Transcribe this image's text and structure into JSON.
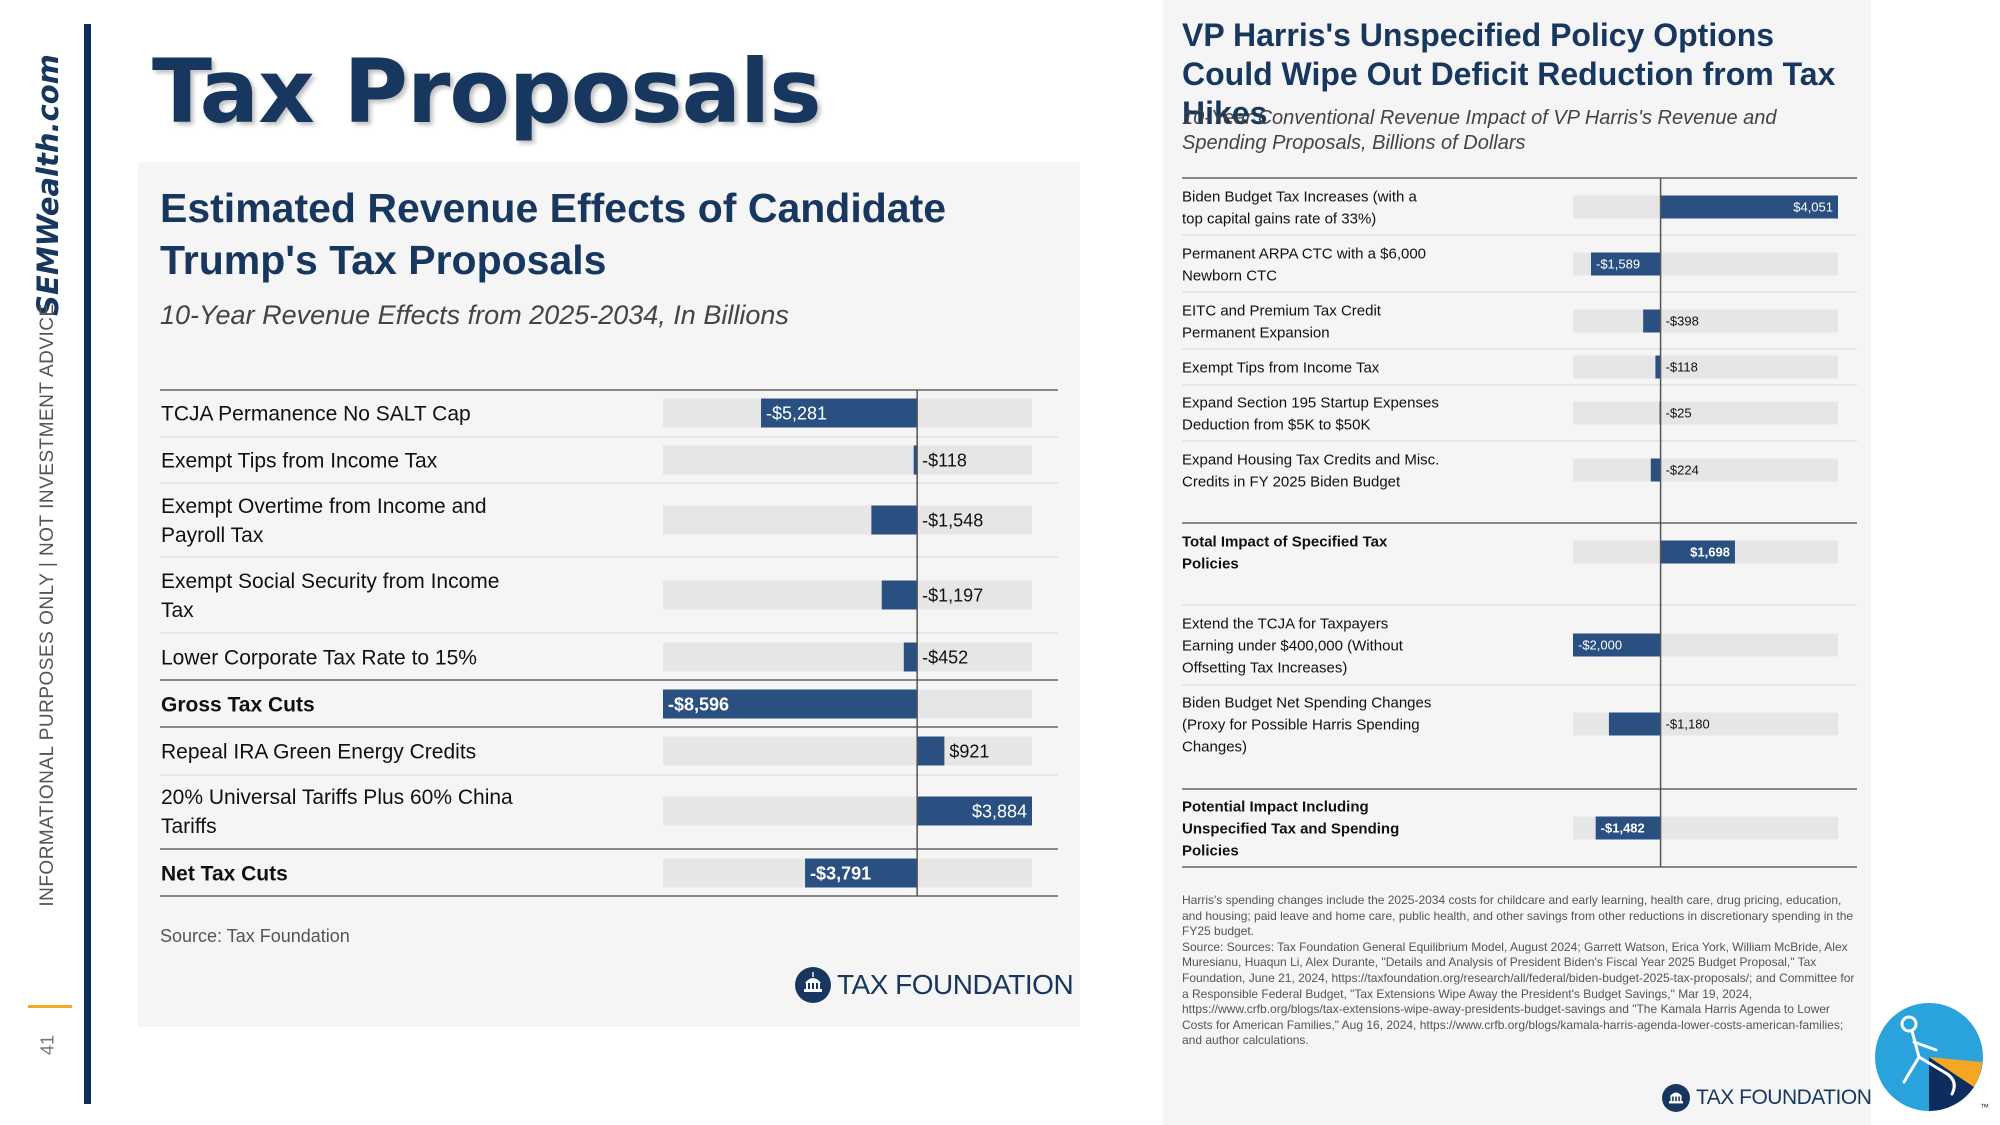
{
  "slide": {
    "title": "Tax Proposals",
    "brand": "SEMWealth.com",
    "disclaimer": "INFORMATIONAL PURPOSES ONLY | NOT INVESTMENT ADVICE",
    "page_number": "41",
    "colors": {
      "navy": "#17375e",
      "bar": "#2a5082",
      "track": "#e6e6e6",
      "accent": "#f5a623"
    }
  },
  "left_panel": {
    "title": "Estimated Revenue Effects of Candidate Trump's Tax Proposals",
    "subtitle": "10-Year Revenue Effects from 2025-2034, In Billions",
    "source": "Source: Tax Foundation",
    "logo_text": "TAX FOUNDATION",
    "logo_icon": "capitol-icon"
  },
  "right_panel": {
    "title": "VP Harris's Unspecified Policy Options Could Wipe Out Deficit Reduction from Tax Hikes",
    "subtitle": "10-Year Conventional Revenue Impact of VP Harris's Revenue and Spending Proposals, Billions of Dollars",
    "notes": "Harris's spending changes include the 2025-2034 costs for childcare and early learning, health care, drug pricing, education, and housing; paid leave and home care, public health, and other savings from other reductions in discretionary spending in the FY25 budget.\nSource: Sources: Tax Foundation General Equilibrium Model, August 2024; Garrett Watson, Erica York, William McBride, Alex Muresianu, Huaqun Li, Alex Durante, \"Details and Analysis of President Biden's Fiscal Year 2025 Budget Proposal,\" Tax Foundation, June 21, 2024, https://taxfoundation.org/research/all/federal/biden-budget-2025-tax-proposals/; and Committee for a Responsible Federal Budget, \"Tax Extensions Wipe Away the President's Budget Savings,\" Mar 19, 2024, https://www.crfb.org/blogs/tax-extensions-wipe-away-presidents-budget-savings and \"The Kamala Harris Agenda to Lower Costs for American Families,\" Aug 16, 2024, https://www.crfb.org/blogs/kamala-harris-agenda-lower-costs-american-families; and author calculations.",
    "logo_text": "TAX FOUNDATION",
    "logo_icon": "capitol-icon"
  },
  "chart_data": [
    {
      "type": "bar",
      "orientation": "horizontal",
      "title": "Estimated Revenue Effects of Candidate Trump's Tax Proposals",
      "subtitle": "10-Year Revenue Effects from 2025-2034, In Billions",
      "xlim": [
        -8596,
        3884
      ],
      "rows": [
        {
          "label": "TCJA Permanence No SALT Cap",
          "value": -5281,
          "display": "-$5,281",
          "bold": false
        },
        {
          "label": "Exempt Tips from Income Tax",
          "value": -118,
          "display": "-$118",
          "bold": false
        },
        {
          "label": "Exempt Overtime from Income and Payroll Tax",
          "value": -1548,
          "display": "-$1,548",
          "bold": false
        },
        {
          "label": "Exempt Social Security from Income Tax",
          "value": -1197,
          "display": "-$1,197",
          "bold": false
        },
        {
          "label": "Lower Corporate Tax Rate to 15%",
          "value": -452,
          "display": "-$452",
          "bold": false
        },
        {
          "label": "Gross Tax Cuts",
          "value": -8596,
          "display": "-$8,596",
          "bold": true
        },
        {
          "label": "Repeal IRA Green Energy Credits",
          "value": 921,
          "display": "$921",
          "bold": false
        },
        {
          "label": "20% Universal Tariffs Plus 60% China Tariffs",
          "value": 3884,
          "display": "$3,884",
          "bold": false
        },
        {
          "label": "Net Tax Cuts",
          "value": -3791,
          "display": "-$3,791",
          "bold": true
        }
      ]
    },
    {
      "type": "bar",
      "orientation": "horizontal",
      "title": "VP Harris's Unspecified Policy Options Could Wipe Out Deficit Reduction from Tax Hikes",
      "subtitle": "10-Year Conventional Revenue Impact of VP Harris's Revenue and Spending Proposals, Billions of Dollars",
      "xlim": [
        -2000,
        4051
      ],
      "rows": [
        {
          "label": "Biden Budget Tax Increases (with a top capital gains rate of 33%)",
          "value": 4051,
          "display": "$4,051",
          "bold": false
        },
        {
          "label": "Permanent ARPA CTC with a $6,000 Newborn CTC",
          "value": -1589,
          "display": "-$1,589",
          "bold": false
        },
        {
          "label": "EITC and Premium Tax Credit Permanent Expansion",
          "value": -398,
          "display": "-$398",
          "bold": false
        },
        {
          "label": "Exempt Tips from Income Tax",
          "value": -118,
          "display": "-$118",
          "bold": false
        },
        {
          "label": "Expand Section 195 Startup Expenses Deduction from $5K to $50K",
          "value": -25,
          "display": "-$25",
          "bold": false
        },
        {
          "label": "Expand Housing Tax Credits and Misc. Credits in FY 2025 Biden Budget",
          "value": -224,
          "display": "-$224",
          "bold": false
        },
        {
          "label": "Total Impact of Specified Tax Policies",
          "value": 1698,
          "display": "$1,698",
          "bold": true
        },
        {
          "label": "Extend the TCJA for Taxpayers Earning under $400,000 (Without Offsetting Tax Increases)",
          "value": -2000,
          "display": "-$2,000",
          "bold": false
        },
        {
          "label": "Biden Budget Net Spending Changes (Proxy for Possible Harris Spending Changes)",
          "value": -1180,
          "display": "-$1,180",
          "bold": false
        },
        {
          "label": "Potential Impact Including Unspecified Tax and Spending Policies",
          "value": -1482,
          "display": "-$1,482",
          "bold": true
        }
      ]
    }
  ]
}
